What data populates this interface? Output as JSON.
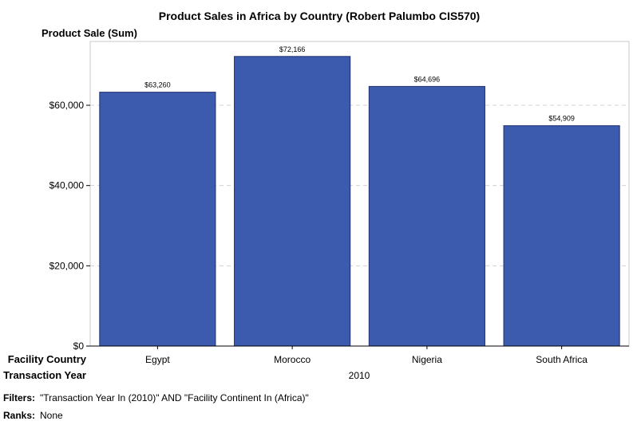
{
  "chart_data": {
    "type": "bar",
    "title": "Product Sales in Africa by Country  (Robert Palumbo CIS570)",
    "ylabel": "Product Sale (Sum)",
    "categories": [
      "Egypt",
      "Morocco",
      "Nigeria",
      "South Africa"
    ],
    "values": [
      63260,
      72166,
      64696,
      54909
    ],
    "data_labels": [
      "$63,260",
      "$72,166",
      "$64,696",
      "$54,909"
    ],
    "ylim": [
      0,
      75900
    ],
    "yticks": [
      0,
      20000,
      40000,
      60000
    ],
    "ytick_labels": [
      "$0",
      "$20,000",
      "$40,000",
      "$60,000"
    ],
    "grid": "horizontal-dashed",
    "bar_color": "#3c5aae",
    "row_labels": {
      "category": "Facility Country",
      "group": "Transaction Year"
    },
    "group_value": "2010"
  },
  "footer": {
    "filters_label": "Filters:",
    "filters_value": "\"Transaction Year In (2010)\" AND \"Facility Continent In (Africa)\"",
    "ranks_label": "Ranks:",
    "ranks_value": "None"
  }
}
